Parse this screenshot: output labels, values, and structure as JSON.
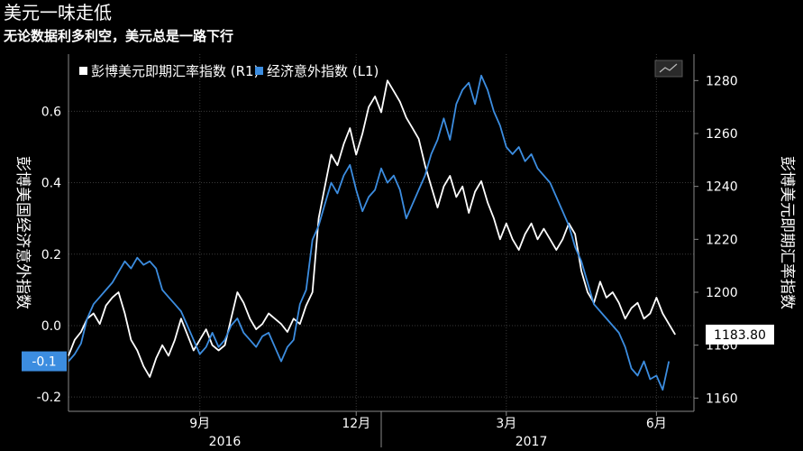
{
  "title": "美元一味走低",
  "subtitle": "无论数据利多利空，美元总是一路下行",
  "chart_data": {
    "type": "line",
    "legend": {
      "placement": "top-left"
    },
    "left_axis": {
      "label": "彭博美国经济意外指数",
      "range": [
        -0.24,
        0.76
      ],
      "ticks": [
        {
          "v": 0.6,
          "t": "0.6"
        },
        {
          "v": 0.4,
          "t": "0.4"
        },
        {
          "v": 0.2,
          "t": "0.2"
        },
        {
          "v": 0.0,
          "t": "0.0"
        },
        {
          "v": -0.2,
          "t": "-0.2"
        }
      ]
    },
    "right_axis": {
      "label": "彭博美元即期汇率指数",
      "range": [
        1155,
        1290
      ],
      "ticks": [
        {
          "v": 1280,
          "t": "1280"
        },
        {
          "v": 1260,
          "t": "1260"
        },
        {
          "v": 1240,
          "t": "1240"
        },
        {
          "v": 1220,
          "t": "1220"
        },
        {
          "v": 1200,
          "t": "1200"
        },
        {
          "v": 1180,
          "t": "1180"
        },
        {
          "v": 1160,
          "t": "1160"
        }
      ]
    },
    "x_axis": {
      "range": [
        0,
        100
      ],
      "month_ticks": [
        {
          "x": 21,
          "t": "9月"
        },
        {
          "x": 46,
          "t": "12月"
        },
        {
          "x": 70,
          "t": "3月"
        },
        {
          "x": 94,
          "t": "6月"
        }
      ],
      "year_labels": [
        {
          "x": 25,
          "t": "2016"
        },
        {
          "x": 74,
          "t": "2017"
        }
      ],
      "year_divider_x": 50
    },
    "series": [
      {
        "name": "彭博美元即期汇率指数 (R1)",
        "axis": "right",
        "color": "#ffffff",
        "last_value_label": "1183.80",
        "points": [
          [
            0,
            1176
          ],
          [
            1,
            1182
          ],
          [
            2,
            1185
          ],
          [
            3,
            1190
          ],
          [
            4,
            1192
          ],
          [
            5,
            1188
          ],
          [
            6,
            1195
          ],
          [
            7,
            1198
          ],
          [
            8,
            1200
          ],
          [
            9,
            1192
          ],
          [
            10,
            1182
          ],
          [
            11,
            1178
          ],
          [
            12,
            1172
          ],
          [
            13,
            1168
          ],
          [
            14,
            1175
          ],
          [
            15,
            1180
          ],
          [
            16,
            1176
          ],
          [
            17,
            1182
          ],
          [
            18,
            1190
          ],
          [
            19,
            1184
          ],
          [
            20,
            1178
          ],
          [
            21,
            1182
          ],
          [
            22,
            1186
          ],
          [
            23,
            1180
          ],
          [
            24,
            1178
          ],
          [
            25,
            1180
          ],
          [
            26,
            1190
          ],
          [
            27,
            1200
          ],
          [
            28,
            1196
          ],
          [
            29,
            1190
          ],
          [
            30,
            1186
          ],
          [
            31,
            1188
          ],
          [
            32,
            1192
          ],
          [
            33,
            1190
          ],
          [
            34,
            1188
          ],
          [
            35,
            1185
          ],
          [
            36,
            1190
          ],
          [
            37,
            1188
          ],
          [
            38,
            1195
          ],
          [
            39,
            1200
          ],
          [
            40,
            1228
          ],
          [
            41,
            1240
          ],
          [
            42,
            1252
          ],
          [
            43,
            1248
          ],
          [
            44,
            1256
          ],
          [
            45,
            1262
          ],
          [
            46,
            1252
          ],
          [
            47,
            1260
          ],
          [
            48,
            1270
          ],
          [
            49,
            1274
          ],
          [
            50,
            1268
          ],
          [
            51,
            1280
          ],
          [
            52,
            1276
          ],
          [
            53,
            1272
          ],
          [
            54,
            1266
          ],
          [
            55,
            1262
          ],
          [
            56,
            1258
          ],
          [
            57,
            1248
          ],
          [
            58,
            1240
          ],
          [
            59,
            1232
          ],
          [
            60,
            1240
          ],
          [
            61,
            1244
          ],
          [
            62,
            1236
          ],
          [
            63,
            1240
          ],
          [
            64,
            1230
          ],
          [
            65,
            1238
          ],
          [
            66,
            1242
          ],
          [
            67,
            1234
          ],
          [
            68,
            1228
          ],
          [
            69,
            1220
          ],
          [
            70,
            1226
          ],
          [
            71,
            1220
          ],
          [
            72,
            1216
          ],
          [
            73,
            1222
          ],
          [
            74,
            1226
          ],
          [
            75,
            1220
          ],
          [
            76,
            1224
          ],
          [
            77,
            1220
          ],
          [
            78,
            1216
          ],
          [
            79,
            1220
          ],
          [
            80,
            1226
          ],
          [
            81,
            1222
          ],
          [
            82,
            1208
          ],
          [
            83,
            1200
          ],
          [
            84,
            1196
          ],
          [
            85,
            1204
          ],
          [
            86,
            1198
          ],
          [
            87,
            1200
          ],
          [
            88,
            1196
          ],
          [
            89,
            1190
          ],
          [
            90,
            1194
          ],
          [
            91,
            1196
          ],
          [
            92,
            1190
          ],
          [
            93,
            1192
          ],
          [
            94,
            1198
          ],
          [
            95,
            1192
          ],
          [
            96,
            1188
          ],
          [
            97,
            1184
          ]
        ]
      },
      {
        "name": "经济意外指数 (L1)",
        "axis": "left",
        "color": "#3c8de0",
        "last_value_label": "-0.1",
        "points": [
          [
            0,
            -0.1
          ],
          [
            1,
            -0.08
          ],
          [
            2,
            -0.05
          ],
          [
            3,
            0.02
          ],
          [
            4,
            0.06
          ],
          [
            5,
            0.08
          ],
          [
            6,
            0.1
          ],
          [
            7,
            0.12
          ],
          [
            8,
            0.15
          ],
          [
            9,
            0.18
          ],
          [
            10,
            0.16
          ],
          [
            11,
            0.19
          ],
          [
            12,
            0.17
          ],
          [
            13,
            0.18
          ],
          [
            14,
            0.16
          ],
          [
            15,
            0.1
          ],
          [
            16,
            0.08
          ],
          [
            17,
            0.06
          ],
          [
            18,
            0.04
          ],
          [
            19,
            0.0
          ],
          [
            20,
            -0.04
          ],
          [
            21,
            -0.08
          ],
          [
            22,
            -0.06
          ],
          [
            23,
            -0.02
          ],
          [
            24,
            -0.06
          ],
          [
            25,
            -0.04
          ],
          [
            26,
            0.0
          ],
          [
            27,
            0.02
          ],
          [
            28,
            -0.02
          ],
          [
            29,
            -0.04
          ],
          [
            30,
            -0.06
          ],
          [
            31,
            -0.03
          ],
          [
            32,
            -0.02
          ],
          [
            33,
            -0.06
          ],
          [
            34,
            -0.1
          ],
          [
            35,
            -0.06
          ],
          [
            36,
            -0.04
          ],
          [
            37,
            0.06
          ],
          [
            38,
            0.1
          ],
          [
            39,
            0.24
          ],
          [
            40,
            0.28
          ],
          [
            41,
            0.34
          ],
          [
            42,
            0.4
          ],
          [
            43,
            0.37
          ],
          [
            44,
            0.42
          ],
          [
            45,
            0.45
          ],
          [
            46,
            0.38
          ],
          [
            47,
            0.32
          ],
          [
            48,
            0.36
          ],
          [
            49,
            0.38
          ],
          [
            50,
            0.44
          ],
          [
            51,
            0.4
          ],
          [
            52,
            0.42
          ],
          [
            53,
            0.38
          ],
          [
            54,
            0.3
          ],
          [
            55,
            0.34
          ],
          [
            56,
            0.38
          ],
          [
            57,
            0.42
          ],
          [
            58,
            0.48
          ],
          [
            59,
            0.52
          ],
          [
            60,
            0.58
          ],
          [
            61,
            0.52
          ],
          [
            62,
            0.62
          ],
          [
            63,
            0.66
          ],
          [
            64,
            0.68
          ],
          [
            65,
            0.62
          ],
          [
            66,
            0.7
          ],
          [
            67,
            0.66
          ],
          [
            68,
            0.6
          ],
          [
            69,
            0.56
          ],
          [
            70,
            0.5
          ],
          [
            71,
            0.48
          ],
          [
            72,
            0.5
          ],
          [
            73,
            0.46
          ],
          [
            74,
            0.48
          ],
          [
            75,
            0.44
          ],
          [
            76,
            0.42
          ],
          [
            77,
            0.4
          ],
          [
            78,
            0.36
          ],
          [
            79,
            0.32
          ],
          [
            80,
            0.28
          ],
          [
            81,
            0.22
          ],
          [
            82,
            0.18
          ],
          [
            83,
            0.12
          ],
          [
            84,
            0.06
          ],
          [
            85,
            0.04
          ],
          [
            86,
            0.02
          ],
          [
            87,
            0.0
          ],
          [
            88,
            -0.02
          ],
          [
            89,
            -0.06
          ],
          [
            90,
            -0.12
          ],
          [
            91,
            -0.14
          ],
          [
            92,
            -0.1
          ],
          [
            93,
            -0.15
          ],
          [
            94,
            -0.14
          ],
          [
            95,
            -0.18
          ],
          [
            96,
            -0.1
          ]
        ]
      }
    ]
  }
}
